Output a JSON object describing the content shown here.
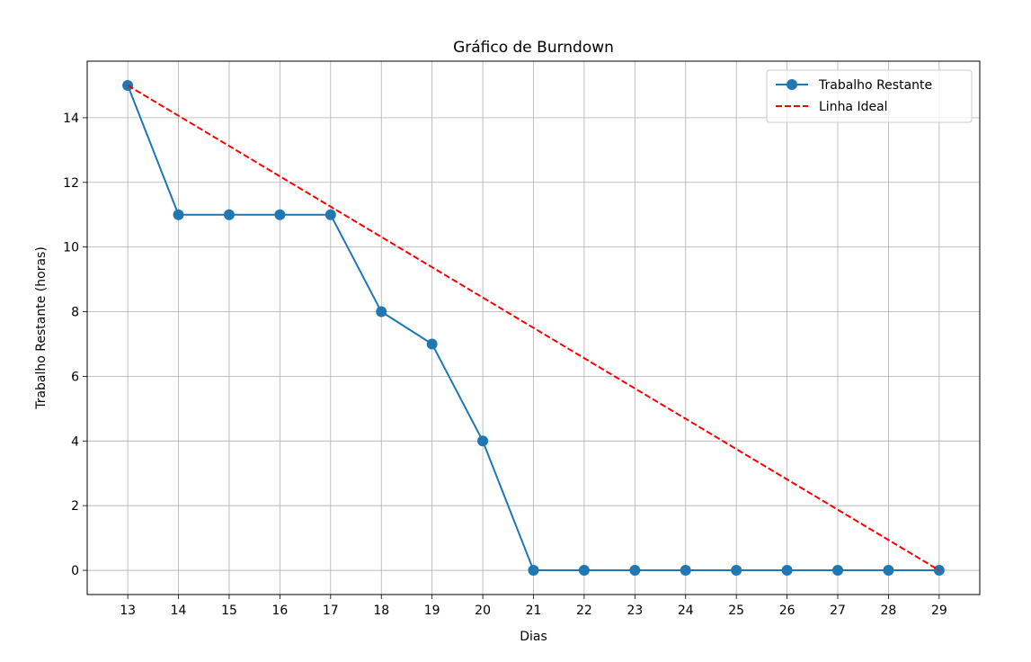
{
  "chart_data": {
    "type": "line",
    "title": "Gráfico de Burndown",
    "xlabel": "Dias",
    "ylabel": "Trabalho Restante (horas)",
    "x": [
      13,
      14,
      15,
      16,
      17,
      18,
      19,
      20,
      21,
      22,
      23,
      24,
      25,
      26,
      27,
      28,
      29
    ],
    "xlim": [
      12.2,
      29.8
    ],
    "ylim": [
      -0.75,
      15.75
    ],
    "xticks": [
      13,
      14,
      15,
      16,
      17,
      18,
      19,
      20,
      21,
      22,
      23,
      24,
      25,
      26,
      27,
      28,
      29
    ],
    "yticks": [
      0,
      2,
      4,
      6,
      8,
      10,
      12,
      14
    ],
    "grid": true,
    "legend_position": "top-right",
    "series": [
      {
        "name": "Trabalho Restante",
        "values": [
          15,
          11,
          11,
          11,
          11,
          8,
          7,
          4,
          0,
          0,
          0,
          0,
          0,
          0,
          0,
          0,
          0
        ],
        "color": "#1f77b4",
        "style": "solid",
        "marker": "circle"
      },
      {
        "name": "Linha Ideal",
        "x": [
          13,
          29
        ],
        "values": [
          15,
          0
        ],
        "color": "#ff0000",
        "style": "dashed",
        "marker": "none"
      }
    ]
  }
}
